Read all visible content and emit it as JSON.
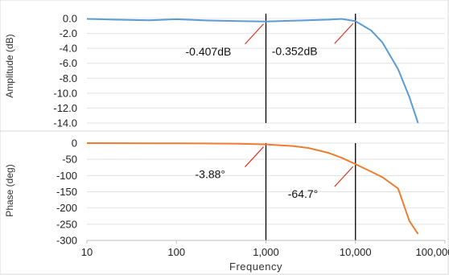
{
  "chart_data": [
    {
      "type": "line",
      "panel": "amplitude",
      "ylabel": "Amplitude (dB)",
      "xscale": "log",
      "xlim": [
        10,
        100000
      ],
      "ylim": [
        -14,
        0
      ],
      "yticks": [
        "0.0",
        "-2.0",
        "-4.0",
        "-6.0",
        "-8.0",
        "-10.0",
        "-12.0",
        "-14.0"
      ],
      "grid": "horizontal",
      "series": [
        {
          "color": "#5b9bd5",
          "x": [
            10,
            20,
            50,
            100,
            200,
            500,
            1000,
            2000,
            5000,
            7000,
            10000,
            15000,
            20000,
            30000,
            40000,
            50000
          ],
          "y": [
            -0.05,
            -0.15,
            -0.25,
            -0.1,
            -0.25,
            -0.35,
            -0.407,
            -0.3,
            -0.15,
            -0.05,
            -0.352,
            -1.6,
            -3.2,
            -6.8,
            -10.5,
            -14.0
          ]
        }
      ],
      "markers_x": [
        1000,
        10000
      ],
      "annotations": [
        {
          "text": "-0.407dB",
          "x": 1000,
          "y": -0.407
        },
        {
          "text": "-0.352dB",
          "x": 10000,
          "y": -0.352
        }
      ]
    },
    {
      "type": "line",
      "panel": "phase",
      "ylabel": "Phase (deg)",
      "xlabel": "Frequency",
      "xscale": "log",
      "xlim": [
        10,
        100000
      ],
      "ylim": [
        -300,
        0
      ],
      "yticks": [
        "0",
        "-50",
        "-100",
        "-150",
        "-200",
        "-250",
        "-300"
      ],
      "xticks": [
        "10",
        "100",
        "1,000",
        "10,000",
        "100,000"
      ],
      "grid": "horizontal",
      "series": [
        {
          "color": "#ed7d31",
          "x": [
            10,
            50,
            100,
            200,
            500,
            1000,
            2000,
            3000,
            5000,
            7000,
            10000,
            15000,
            20000,
            30000,
            40000,
            50000
          ],
          "y": [
            0,
            -0.5,
            -0.5,
            -1,
            -2,
            -3.88,
            -9,
            -15,
            -30,
            -45,
            -64.7,
            -88,
            -105,
            -140,
            -240,
            -280
          ]
        }
      ],
      "markers_x": [
        1000,
        10000
      ],
      "annotations": [
        {
          "text": "-3.88°",
          "x": 1000,
          "y": -3.88
        },
        {
          "text": "-64.7°",
          "x": 10000,
          "y": -64.7
        }
      ]
    }
  ]
}
